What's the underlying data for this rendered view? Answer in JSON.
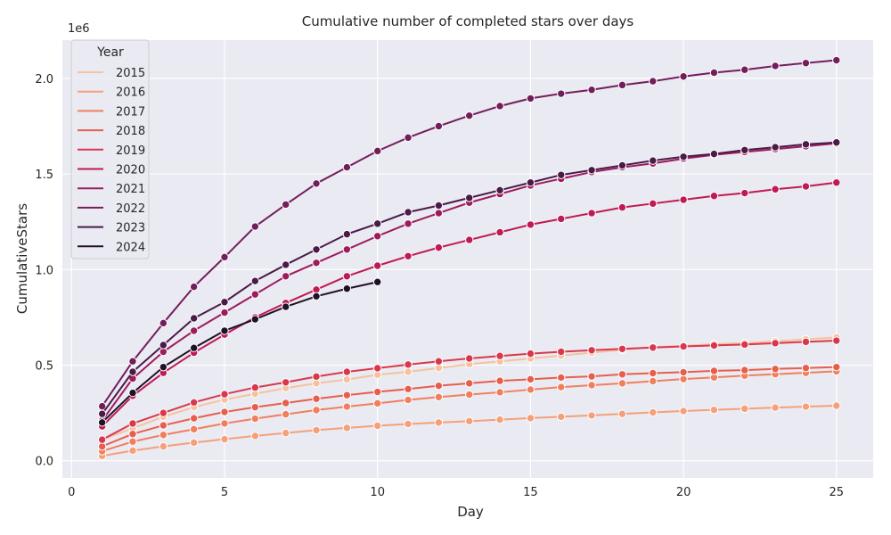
{
  "chart_data": {
    "type": "line",
    "title": "Cumulative number of completed stars over days",
    "xlabel": "Day",
    "ylabel": "CumulativeStars",
    "y_multiplier_label": "1e6",
    "xlim": [
      -0.3,
      26.2
    ],
    "ylim": [
      -0.09,
      2.2
    ],
    "x_ticks": [
      0,
      5,
      10,
      15,
      20,
      25
    ],
    "y_ticks": [
      0.0,
      0.5,
      1.0,
      1.5,
      2.0
    ],
    "y_tick_labels": [
      "0.0",
      "0.5",
      "1.0",
      "1.5",
      "2.0"
    ],
    "grid": true,
    "legend_title": "Year",
    "legend_position": "upper-left",
    "series": [
      {
        "name": "2015",
        "color": "#f6c29e",
        "x": [
          1,
          2,
          3,
          4,
          5,
          6,
          7,
          8,
          9,
          10,
          11,
          12,
          13,
          14,
          15,
          16,
          17,
          18,
          19,
          20,
          21,
          22,
          23,
          24,
          25
        ],
        "values": [
          0.11,
          0.17,
          0.23,
          0.28,
          0.32,
          0.35,
          0.38,
          0.405,
          0.425,
          0.45,
          0.465,
          0.485,
          0.505,
          0.52,
          0.535,
          0.55,
          0.565,
          0.58,
          0.595,
          0.6,
          0.61,
          0.615,
          0.625,
          0.635,
          0.645
        ]
      },
      {
        "name": "2016",
        "color": "#f4a07a",
        "x": [
          1,
          2,
          3,
          4,
          5,
          6,
          7,
          8,
          9,
          10,
          11,
          12,
          13,
          14,
          15,
          16,
          17,
          18,
          19,
          20,
          21,
          22,
          23,
          24,
          25
        ],
        "values": [
          0.025,
          0.053,
          0.075,
          0.095,
          0.113,
          0.13,
          0.145,
          0.16,
          0.172,
          0.183,
          0.192,
          0.2,
          0.207,
          0.215,
          0.223,
          0.23,
          0.237,
          0.245,
          0.253,
          0.26,
          0.266,
          0.272,
          0.278,
          0.283,
          0.288
        ]
      },
      {
        "name": "2017",
        "color": "#f07f5e",
        "x": [
          1,
          2,
          3,
          4,
          5,
          6,
          7,
          8,
          9,
          10,
          11,
          12,
          13,
          14,
          15,
          16,
          17,
          18,
          19,
          20,
          21,
          22,
          23,
          24,
          25
        ],
        "values": [
          0.05,
          0.1,
          0.135,
          0.165,
          0.195,
          0.22,
          0.243,
          0.265,
          0.283,
          0.3,
          0.318,
          0.333,
          0.346,
          0.358,
          0.372,
          0.385,
          0.395,
          0.405,
          0.416,
          0.427,
          0.436,
          0.445,
          0.453,
          0.46,
          0.468
        ]
      },
      {
        "name": "2018",
        "color": "#e65f4d",
        "x": [
          1,
          2,
          3,
          4,
          5,
          6,
          7,
          8,
          9,
          10,
          11,
          12,
          13,
          14,
          15,
          16,
          17,
          18,
          19,
          20,
          21,
          22,
          23,
          24,
          25
        ],
        "values": [
          0.075,
          0.14,
          0.185,
          0.222,
          0.255,
          0.28,
          0.302,
          0.324,
          0.343,
          0.36,
          0.375,
          0.392,
          0.405,
          0.418,
          0.426,
          0.435,
          0.441,
          0.452,
          0.458,
          0.463,
          0.47,
          0.474,
          0.48,
          0.485,
          0.49
        ]
      },
      {
        "name": "2019",
        "color": "#d8384d",
        "x": [
          1,
          2,
          3,
          4,
          5,
          6,
          7,
          8,
          9,
          10,
          11,
          12,
          13,
          14,
          15,
          16,
          17,
          18,
          19,
          20,
          21,
          22,
          23,
          24,
          25
        ],
        "values": [
          0.11,
          0.195,
          0.25,
          0.305,
          0.348,
          0.383,
          0.41,
          0.44,
          0.465,
          0.484,
          0.503,
          0.52,
          0.535,
          0.548,
          0.56,
          0.57,
          0.578,
          0.585,
          0.592,
          0.598,
          0.603,
          0.608,
          0.615,
          0.622,
          0.628
        ]
      },
      {
        "name": "2020",
        "color": "#c01a52",
        "x": [
          1,
          2,
          3,
          4,
          5,
          6,
          7,
          8,
          9,
          10,
          11,
          12,
          13,
          14,
          15,
          16,
          17,
          18,
          19,
          20,
          21,
          22,
          23,
          24,
          25
        ],
        "values": [
          0.18,
          0.34,
          0.46,
          0.565,
          0.66,
          0.75,
          0.825,
          0.895,
          0.965,
          1.02,
          1.07,
          1.115,
          1.155,
          1.195,
          1.235,
          1.265,
          1.295,
          1.325,
          1.345,
          1.365,
          1.385,
          1.4,
          1.42,
          1.435,
          1.455
        ]
      },
      {
        "name": "2021",
        "color": "#9c1c5d",
        "x": [
          1,
          2,
          3,
          4,
          5,
          6,
          7,
          8,
          9,
          10,
          11,
          12,
          13,
          14,
          15,
          16,
          17,
          18,
          19,
          20,
          21,
          22,
          23,
          24,
          25
        ],
        "values": [
          0.21,
          0.43,
          0.57,
          0.68,
          0.775,
          0.87,
          0.965,
          1.035,
          1.105,
          1.175,
          1.24,
          1.295,
          1.35,
          1.395,
          1.44,
          1.475,
          1.51,
          1.535,
          1.555,
          1.58,
          1.6,
          1.615,
          1.63,
          1.645,
          1.66
        ]
      },
      {
        "name": "2022",
        "color": "#731e5c",
        "x": [
          1,
          2,
          3,
          4,
          5,
          6,
          7,
          8,
          9,
          10,
          11,
          12,
          13,
          14,
          15,
          16,
          17,
          18,
          19,
          20,
          21,
          22,
          23,
          24,
          25
        ],
        "values": [
          0.285,
          0.52,
          0.72,
          0.91,
          1.065,
          1.225,
          1.34,
          1.45,
          1.535,
          1.62,
          1.69,
          1.75,
          1.805,
          1.855,
          1.895,
          1.92,
          1.94,
          1.965,
          1.985,
          2.01,
          2.03,
          2.045,
          2.065,
          2.08,
          2.095
        ]
      },
      {
        "name": "2023",
        "color": "#4a1a48",
        "x": [
          1,
          2,
          3,
          4,
          5,
          6,
          7,
          8,
          9,
          10,
          11,
          12,
          13,
          14,
          15,
          16,
          17,
          18,
          19,
          20,
          21,
          22,
          23,
          24,
          25
        ],
        "values": [
          0.245,
          0.465,
          0.605,
          0.745,
          0.83,
          0.94,
          1.025,
          1.105,
          1.185,
          1.24,
          1.3,
          1.335,
          1.375,
          1.415,
          1.455,
          1.495,
          1.52,
          1.545,
          1.57,
          1.59,
          1.605,
          1.625,
          1.64,
          1.655,
          1.665
        ]
      },
      {
        "name": "2024",
        "color": "#1f1126",
        "x": [
          1,
          2,
          3,
          4,
          5,
          6,
          7,
          8,
          9,
          10
        ],
        "values": [
          0.2,
          0.355,
          0.49,
          0.59,
          0.68,
          0.74,
          0.805,
          0.86,
          0.9,
          0.935
        ]
      }
    ]
  }
}
